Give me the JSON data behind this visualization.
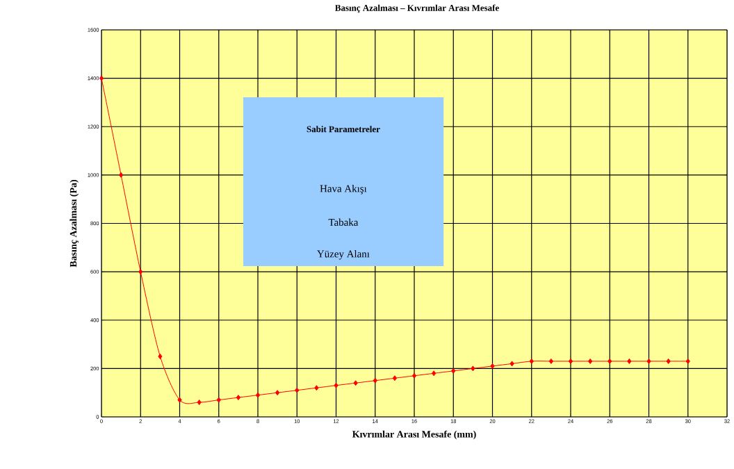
{
  "chart_data": {
    "type": "line",
    "title": "Basınç Azalması – Kıvrımlar Arası Mesafe",
    "xlabel": "Kıvrımlar Arası Mesafe (mm)",
    "ylabel": "Basınç Azalması (Pa)",
    "x": [
      0,
      1,
      2,
      3,
      4,
      5,
      6,
      7,
      8,
      9,
      10,
      11,
      12,
      13,
      14,
      15,
      16,
      17,
      18,
      19,
      20,
      21,
      22,
      23,
      24,
      25,
      26,
      27,
      28,
      29,
      30
    ],
    "values": [
      1400,
      1000,
      600,
      250,
      70,
      60,
      70,
      80,
      90,
      100,
      110,
      120,
      130,
      140,
      150,
      160,
      170,
      180,
      190,
      200,
      210,
      220,
      230,
      230,
      230,
      230,
      230,
      230,
      230,
      230,
      230
    ],
    "color": "#ff0000",
    "marker": "diamond",
    "line_style": "solid",
    "grid": true,
    "xlim": [
      0,
      32
    ],
    "ylim": [
      0,
      1600
    ],
    "xticks": [
      0,
      2,
      4,
      6,
      8,
      10,
      12,
      14,
      16,
      18,
      20,
      22,
      24,
      26,
      28,
      30,
      32
    ],
    "yticks": [
      0,
      200,
      400,
      600,
      800,
      1000,
      1200,
      1400,
      1600
    ],
    "annotations": [
      "Sabit Parametreler",
      "Hava Akışı",
      "Tabaka",
      "Yüzey Alanı"
    ]
  }
}
